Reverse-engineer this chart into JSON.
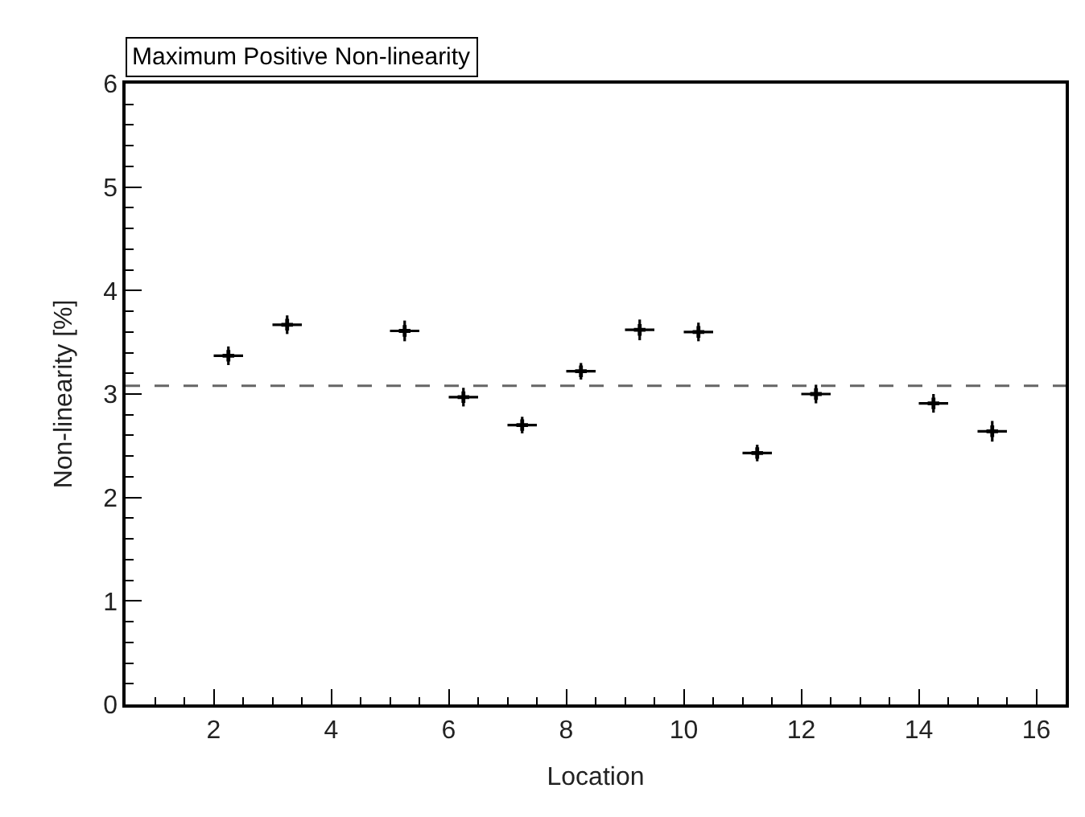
{
  "chart_data": {
    "type": "scatter",
    "title": "Maximum Positive Non-linearity",
    "xlabel": "Location",
    "ylabel": "Non-linearity [%]",
    "x": [
      2.25,
      3.25,
      5.25,
      6.25,
      7.25,
      8.25,
      9.25,
      10.25,
      11.25,
      12.25,
      14.25,
      15.25
    ],
    "series": [
      {
        "color": "#000000",
        "values": [
          3.37,
          3.67,
          3.61,
          2.97,
          2.7,
          3.22,
          3.62,
          3.6,
          2.43,
          3.0,
          2.91,
          2.64
        ],
        "errors": [
          0.09,
          0.09,
          0.1,
          0.09,
          0.08,
          0.08,
          0.1,
          0.09,
          0.08,
          0.09,
          0.09,
          0.1
        ],
        "xerrors": [
          0.25,
          0.25,
          0.25,
          0.25,
          0.25,
          0.25,
          0.25,
          0.25,
          0.25,
          0.25,
          0.25,
          0.25
        ]
      }
    ],
    "xlim": [
      0.5,
      16.5
    ],
    "xticks": [
      2,
      4,
      6,
      8,
      10,
      12,
      14,
      16
    ],
    "ylim": [
      0,
      6
    ],
    "yticks": [
      0,
      1,
      2,
      3,
      4,
      5,
      6
    ],
    "ref_lines": [
      {
        "axis": "y",
        "value": 3.08,
        "color": "#666666",
        "line_style": "dashed"
      }
    ],
    "marker": "cross"
  }
}
